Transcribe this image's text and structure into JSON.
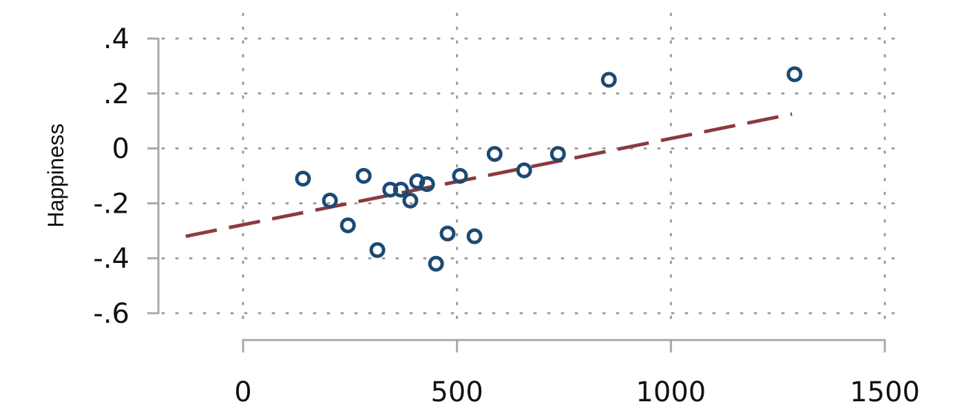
{
  "chart_data": {
    "type": "scatter",
    "title": "",
    "xlabel": "",
    "ylabel": "Happiness",
    "xlim": [
      0,
      1500
    ],
    "ylim": [
      -0.6,
      0.4
    ],
    "xticks": [
      0,
      500,
      1000,
      1500
    ],
    "xtick_labels": [
      "0",
      "500",
      "1000",
      "1500"
    ],
    "yticks": [
      0.4,
      0.2,
      0,
      -0.2,
      -0.4,
      -0.6
    ],
    "ytick_labels": [
      ".4",
      ".2",
      "0",
      "-.2",
      "-.4",
      "-.6"
    ],
    "grid": true,
    "grid_style": "dotted",
    "points": [
      {
        "x": 140,
        "y": -0.11
      },
      {
        "x": 203,
        "y": -0.19
      },
      {
        "x": 245,
        "y": -0.28
      },
      {
        "x": 282,
        "y": -0.1
      },
      {
        "x": 314,
        "y": -0.37
      },
      {
        "x": 344,
        "y": -0.15
      },
      {
        "x": 369,
        "y": -0.15
      },
      {
        "x": 391,
        "y": -0.19
      },
      {
        "x": 407,
        "y": -0.12
      },
      {
        "x": 430,
        "y": -0.13
      },
      {
        "x": 451,
        "y": -0.42
      },
      {
        "x": 478,
        "y": -0.31
      },
      {
        "x": 507,
        "y": -0.1
      },
      {
        "x": 541,
        "y": -0.32
      },
      {
        "x": 588,
        "y": -0.02
      },
      {
        "x": 657,
        "y": -0.08
      },
      {
        "x": 736,
        "y": -0.02
      },
      {
        "x": 855,
        "y": 0.25
      },
      {
        "x": 1289,
        "y": 0.27
      }
    ],
    "fit_line": {
      "x": [
        -134,
        1283
      ],
      "y": [
        -0.32,
        0.125
      ],
      "style": "dashed"
    },
    "colors": {
      "points": "#1b4a74",
      "fit": "#8c3b3d",
      "axis": "#a8a8a8",
      "grid": "#9a9a9a"
    }
  }
}
